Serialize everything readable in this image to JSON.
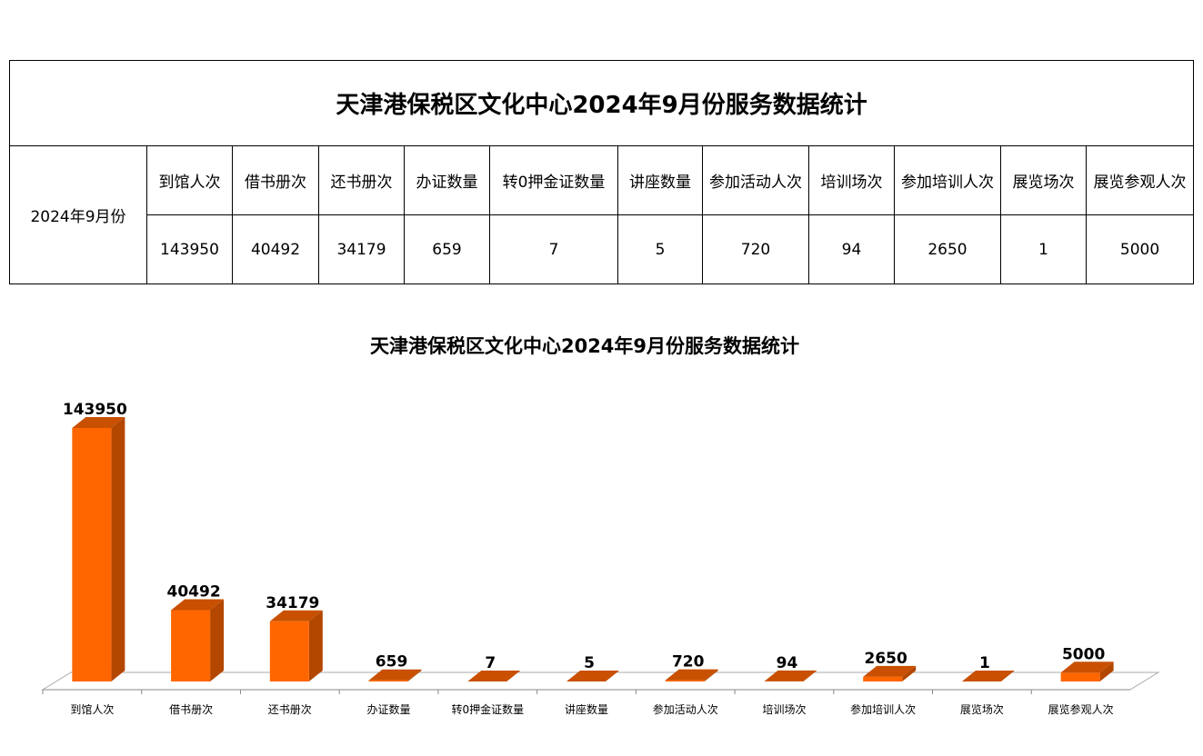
{
  "table": {
    "title": "天津港保税区文化中心2024年9月份服务数据统计",
    "row_label": "2024年9月份",
    "headers": [
      "到馆人次",
      "借书册次",
      "还书册次",
      "办证数量",
      "转0押金证数量",
      "讲座数量",
      "参加活动人次",
      "培训场次",
      "参加培训人次",
      "展览场次",
      "展览参观人次"
    ],
    "values": [
      "143950",
      "40492",
      "34179",
      "659",
      "7",
      "5",
      "720",
      "94",
      "2650",
      "1",
      "5000"
    ]
  },
  "chart_data": {
    "type": "bar",
    "title": "天津港保税区文化中心2024年9月份服务数据统计",
    "categories": [
      "到馆人次",
      "借书册次",
      "还书册次",
      "办证数量",
      "转0押金证数量",
      "讲座数量",
      "参加活动人次",
      "培训场次",
      "参加培训人次",
      "展览场次",
      "展览参观人次"
    ],
    "values": [
      143950,
      40492,
      34179,
      659,
      7,
      5,
      720,
      94,
      2650,
      1,
      5000
    ],
    "xlabel": "",
    "ylabel": "",
    "ylim": [
      0,
      143950
    ],
    "grid": false,
    "legend": "none",
    "three_d": true,
    "colors": {
      "front": "#ff6600",
      "side": "#b34700",
      "top": "#c85000"
    }
  }
}
